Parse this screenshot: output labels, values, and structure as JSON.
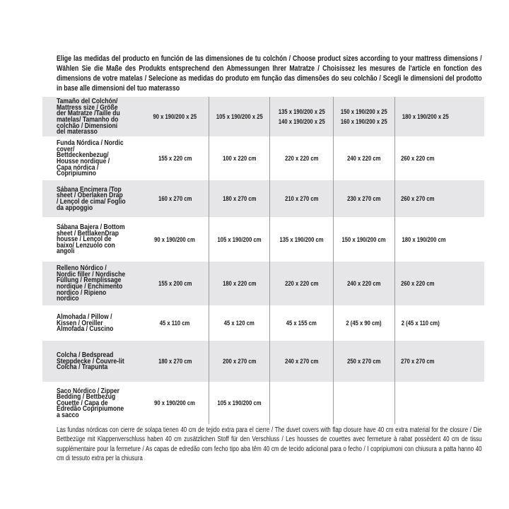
{
  "intro": "Elige las medidas del producto en función de las dimensiones de tu colchón / Choose product sizes according to your mattress dimensions / Wählen Sie die Maße des Produkts entsprechend den Abmessungen Ihrer Matratze / Choisissez les mesures de l'article en fonction des dimensions de votre matelas / Selecione as medidas do produto em função das dimensões do seu colchão / Scegli le dimensioni del prodotto in base alle dimensioni del tuo materasso",
  "header": {
    "label": "Tamaño del Colchón/ Mattress size / Größe der Matratze /Taille du matelas/ Tamanho do colchão / Dimensioni del materasso",
    "cols": [
      [
        "90 x 190/200 x 25"
      ],
      [
        "105 x 190/200 x 25"
      ],
      [
        "135 x 190/200 x 25",
        "140 x 190/200 x 25"
      ],
      [
        "150 x 190/200 x 25",
        "160 x 190/200 x 25"
      ],
      [
        "180 x 190/200 x 25"
      ]
    ]
  },
  "rows": [
    {
      "label": "Funda Nórdica /  Nordic cover/ Bettdeckenbezug/ Housse nordique  / Capa nórdica / Copripiumino",
      "values": [
        "155 x 220 cm",
        "100 x 220 cm",
        "220 x 220 cm",
        "240 x 220 cm",
        "260 x 220 cm"
      ]
    },
    {
      "label": "Sábana Encimera /Top sheet / Oberlaken Drap / Lençol de cima/ Foglio da appoggio",
      "values": [
        "160 x 270 cm",
        "180 x 270 cm",
        "210 x 270 cm",
        "230 x 270 cm",
        "260 x 270 cm"
      ]
    },
    {
      "label": "Sábana Bajera / Bottom sheet / BettlakenDrap housse / Lençol de baixo/ Lenzuolo con angoli",
      "values": [
        "90 x 190/200 cm",
        "105 x 190/200 cm",
        "135 x 190/200 cm",
        "150 x 190/200 cm",
        "180 x 190/200 cm"
      ]
    },
    {
      "label": "Relleno Nórdico / Nordic filler / Nordische Füllung / Remplissage nordique / Enchimento nordico / Ripieno nordico",
      "values": [
        "155 x 200 cm",
        "180 x 220 cm",
        "220 x 220 cm",
        "240 x 220 cm",
        "260 x 220 cm"
      ]
    },
    {
      "label": "Almohada  / Pillow / Kissen / Oreiller Almofada / Cuscino",
      "values": [
        "45 x 110 cm",
        "45 x 120 cm",
        "45 x 155 cm",
        "2 (45 x 90 cm)",
        "2 (45 x 110 cm)"
      ]
    },
    {
      "label": "Colcha / Bedspread Steppdecke / Couvre-lit Colcha / Trapunta",
      "values": [
        "180 x 270 cm",
        "200 x 270 cm",
        "240 x 270 cm",
        "250 x 270 cm",
        "270 x 270 cm"
      ]
    },
    {
      "label": "Saco Nórdico / Zipper Bedding / Bettbezug Couette  / Capa de Edredão Copripiumone a sacco",
      "values": [
        "90 x 190/200 cm",
        "105 x 190/200 cm",
        "",
        "",
        ""
      ]
    }
  ],
  "note": "Las fundas nórdicas con cierre de solapa tienen 40 cm de tejido extra para el cierre  / The duvet covers with flap closure have 40 cm extra material for the closure / Die Bettbezüge mit Klappenverschluss haben 40 cm zusätzlichen Stoff für den Verschluss / Les housses de couettes avec fermeture à rabat possèdent 40 cm de tissu supplémentaire pour la fermeture  / As capas de edredão com fecho tipo aba têm 40 cm de tecido adicional para o fecho / I copripiumoni con chiusura a patta hanno 40 cm di tessuto extra per la chiusura",
  "colors": {
    "row_shade": "#e6e6e8",
    "divider": "#9a9aa0",
    "text": "#1a1a1a"
  }
}
